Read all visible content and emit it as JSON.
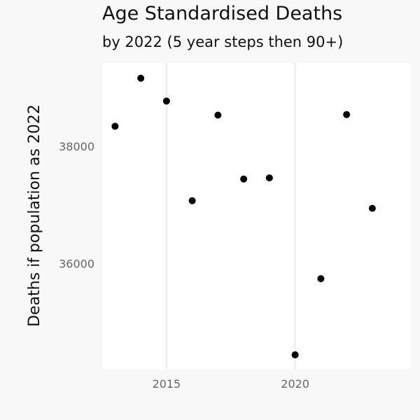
{
  "chart_data": {
    "type": "scatter",
    "title": "Age Standardised Deaths",
    "subtitle": "by 2022 (5 year steps then 90+)",
    "xlabel": "",
    "ylabel": "Deaths if population as 2022",
    "x": [
      2013,
      2014,
      2015,
      2016,
      2017,
      2018,
      2019,
      2020,
      2021,
      2022,
      2023
    ],
    "y": [
      38360,
      39180,
      38790,
      37090,
      38550,
      37460,
      37480,
      34460,
      35760,
      38560,
      36960
    ],
    "xlim": [
      2012.5,
      2024.5
    ],
    "ylim": [
      34220,
      39440
    ],
    "xticks": [
      2015,
      2020
    ],
    "yticks": [
      36000,
      38000
    ],
    "xtick_labels": [
      "2015",
      "2020"
    ],
    "ytick_labels": [
      "36000",
      "38000"
    ],
    "grid": "vertical major only",
    "legend": "none",
    "colors": {
      "background": "#f8f8f8",
      "panel": "#ffffff",
      "grid": "#f0f0f0",
      "point": "#000000",
      "tick_text": "#666666",
      "title_text": "#111111"
    }
  }
}
